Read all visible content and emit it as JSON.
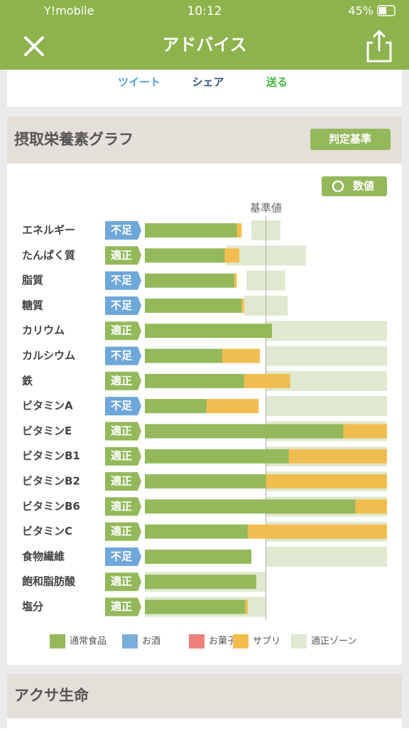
{
  "status_bar": {
    "carrier": "Y!mobile",
    "time": "10:12",
    "battery": "45%"
  },
  "header": {
    "title": "アドバイス"
  },
  "share": [
    "ツイート",
    "シェア",
    "送る"
  ],
  "card": {
    "title": "摂取栄養素グラフ",
    "criteria_button": "判定基準",
    "values_button": "数値"
  },
  "chart_data": {
    "type": "stacked-bar-horizontal",
    "categories": [
      "エネルギー",
      "たんぱく質",
      "脂質",
      "糖質",
      "カリウム",
      "カルシウム",
      "鉄",
      "ビタミンA",
      "ビタミンE",
      "ビタミンB1",
      "ビタミンB2",
      "ビタミンB6",
      "ビタミンC",
      "食物繊維",
      "飽和脂肪酸",
      "塩分"
    ],
    "status": [
      "不足",
      "適正",
      "不足",
      "不足",
      "適正",
      "不足",
      "適正",
      "不足",
      "適正",
      "適正",
      "適正",
      "適正",
      "適正",
      "不足",
      "適正",
      "適正"
    ],
    "status_colors": {
      "不足": "#6ea7d9",
      "適正": "#93b95a"
    },
    "series": [
      {
        "name": "通常食品",
        "color": "#93b95a",
        "values": [
          76,
          66,
          74,
          80,
          105,
          64,
          82,
          51,
          164,
          119,
          100,
          174,
          85,
          88,
          92,
          83
        ]
      },
      {
        "name": "お酒",
        "color": "#7aadd8",
        "values": [
          0,
          0,
          0,
          0,
          0,
          0,
          0,
          0,
          0,
          0,
          0,
          0,
          0,
          0,
          0,
          0
        ]
      },
      {
        "name": "お菓子",
        "color": "#ee7f7b",
        "values": [
          0,
          0,
          0,
          0,
          0,
          0,
          0,
          0,
          0,
          0,
          0,
          0,
          0,
          0,
          0,
          0
        ]
      },
      {
        "name": "サプリ",
        "color": "#f2bd4f",
        "values": [
          4,
          12,
          2,
          2,
          0,
          31,
          38,
          43,
          36,
          81,
          100,
          26,
          115,
          0,
          0,
          2
        ]
      }
    ],
    "zone": {
      "name": "適正ゾーン",
      "color": "#dfe9cf",
      "ranges": [
        [
          88,
          112
        ],
        [
          67,
          133
        ],
        [
          84,
          116
        ],
        [
          82,
          118
        ],
        [
          100,
          200
        ],
        [
          100,
          200
        ],
        [
          100,
          200
        ],
        [
          100,
          200
        ],
        [
          100,
          200
        ],
        [
          100,
          200
        ],
        [
          100,
          200
        ],
        [
          100,
          200
        ],
        [
          100,
          200
        ],
        [
          100,
          200
        ],
        [
          0,
          100
        ],
        [
          0,
          100
        ]
      ]
    },
    "reference": {
      "label": "基準値",
      "value": 100
    },
    "xlim": [
      0,
      200
    ]
  },
  "next_card": {
    "title": "アクサ生命"
  }
}
